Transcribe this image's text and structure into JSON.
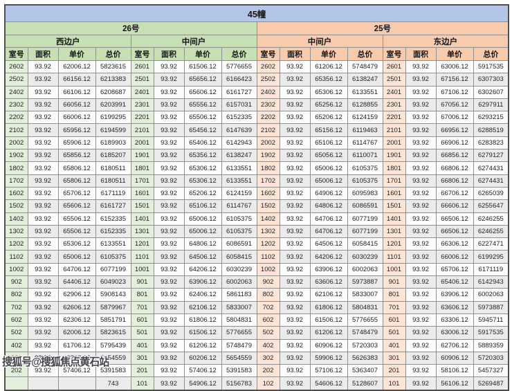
{
  "title": "45幢",
  "columns": [
    "室号",
    "面积",
    "单价",
    "总价"
  ],
  "watermark": {
    "text": "搜狐号@搜狐焦点黄石站"
  },
  "colors": {
    "title_bg": "#b4c6e7",
    "green": "#c6e0b4",
    "orange": "#f8cbad",
    "room_green": "#e2efda",
    "room_orange": "#fce4d6",
    "stripe": "#ebebeb"
  },
  "sections": [
    {
      "name": "26号",
      "units": [
        {
          "name": "西边户",
          "rows": [
            [
              "2602",
              "93.92",
              "62006.12",
              "5823615"
            ],
            [
              "2502",
              "93.92",
              "66156.12",
              "6213383"
            ],
            [
              "2402",
              "93.92",
              "66106.12",
              "6208687"
            ],
            [
              "2302",
              "93.92",
              "66056.12",
              "6203991"
            ],
            [
              "2202",
              "93.92",
              "66006.12",
              "6199295"
            ],
            [
              "2102",
              "93.92",
              "65956.12",
              "6194599"
            ],
            [
              "2002",
              "93.92",
              "65906.12",
              "6189903"
            ],
            [
              "1902",
              "93.92",
              "65856.12",
              "6185207"
            ],
            [
              "1802",
              "93.92",
              "65806.12",
              "6180511"
            ],
            [
              "1702",
              "93.92",
              "65806.12",
              "6180511"
            ],
            [
              "1602",
              "93.92",
              "65706.12",
              "6171119"
            ],
            [
              "1502",
              "93.92",
              "65606.12",
              "6161727"
            ],
            [
              "1402",
              "93.92",
              "65506.12",
              "6152335"
            ],
            [
              "1302",
              "93.92",
              "65506.12",
              "6152335"
            ],
            [
              "1202",
              "93.92",
              "65306.12",
              "6133551"
            ],
            [
              "1102",
              "93.92",
              "65006.12",
              "6105375"
            ],
            [
              "1002",
              "93.92",
              "64706.12",
              "6077199"
            ],
            [
              "902",
              "93.92",
              "64406.12",
              "6049023"
            ],
            [
              "802",
              "93.92",
              "62906.12",
              "5908143"
            ],
            [
              "702",
              "93.92",
              "62606.12",
              "5879967"
            ],
            [
              "602",
              "93.92",
              "62306.12",
              "5851791"
            ],
            [
              "502",
              "93.92",
              "62006.12",
              "5823615"
            ],
            [
              "402",
              "93.92",
              "61706.12",
              "5795439"
            ],
            [
              "302",
              "93.92",
              "60206.12",
              "5654559"
            ],
            [
              "202",
              "93.92",
              "57406.12",
              "5391583"
            ],
            [
              "",
              "",
              "",
              "743"
            ]
          ]
        },
        {
          "name": "中间户",
          "rows": [
            [
              "2601",
              "93.92",
              "61506.12",
              "5776655"
            ],
            [
              "2501",
              "93.92",
              "65656.12",
              "6166423"
            ],
            [
              "2401",
              "93.92",
              "65606.12",
              "6161727"
            ],
            [
              "2301",
              "93.92",
              "65556.12",
              "6157031"
            ],
            [
              "2201",
              "93.92",
              "65506.12",
              "6152335"
            ],
            [
              "2101",
              "93.92",
              "65456.12",
              "6147639"
            ],
            [
              "2001",
              "93.92",
              "65406.12",
              "6142943"
            ],
            [
              "1901",
              "93.92",
              "65356.12",
              "6138247"
            ],
            [
              "1801",
              "93.92",
              "65306.12",
              "6133551"
            ],
            [
              "1701",
              "93.92",
              "65306.12",
              "6133551"
            ],
            [
              "1601",
              "93.92",
              "65206.12",
              "6124159"
            ],
            [
              "1501",
              "93.92",
              "65106.12",
              "6114767"
            ],
            [
              "1401",
              "93.92",
              "65006.12",
              "6105375"
            ],
            [
              "1301",
              "93.92",
              "65006.12",
              "6105375"
            ],
            [
              "1201",
              "93.92",
              "64806.12",
              "6086591"
            ],
            [
              "1101",
              "93.92",
              "64506.12",
              "6058415"
            ],
            [
              "1001",
              "93.92",
              "64206.12",
              "6030239"
            ],
            [
              "901",
              "93.92",
              "63906.12",
              "6002063"
            ],
            [
              "801",
              "93.92",
              "62406.12",
              "5861183"
            ],
            [
              "701",
              "93.92",
              "62106.12",
              "5833007"
            ],
            [
              "601",
              "93.92",
              "61806.12",
              "5804831"
            ],
            [
              "501",
              "93.92",
              "61506.12",
              "5776655"
            ],
            [
              "401",
              "93.92",
              "61206.12",
              "5748479"
            ],
            [
              "301",
              "93.92",
              "60206.12",
              "5654559"
            ],
            [
              "201",
              "93.92",
              "57406.12",
              "5391583"
            ],
            [
              "101",
              "93.92",
              "54906.12",
              "5156783"
            ]
          ]
        }
      ]
    },
    {
      "name": "25号",
      "units": [
        {
          "name": "中间户",
          "rows": [
            [
              "2602",
              "93.92",
              "61206.12",
              "5748479"
            ],
            [
              "2502",
              "93.92",
              "65356.12",
              "6138247"
            ],
            [
              "2402",
              "93.92",
              "65306.12",
              "6133551"
            ],
            [
              "2302",
              "93.92",
              "65256.12",
              "6128855"
            ],
            [
              "2202",
              "93.92",
              "65206.12",
              "6124159"
            ],
            [
              "2102",
              "93.92",
              "65156.12",
              "6119463"
            ],
            [
              "2002",
              "93.92",
              "65106.12",
              "6114767"
            ],
            [
              "1902",
              "93.92",
              "65056.12",
              "6110071"
            ],
            [
              "1802",
              "93.92",
              "65006.12",
              "6105375"
            ],
            [
              "1702",
              "93.92",
              "65006.12",
              "6105375"
            ],
            [
              "1602",
              "93.92",
              "64906.12",
              "6095983"
            ],
            [
              "1502",
              "93.92",
              "64806.12",
              "6086591"
            ],
            [
              "1402",
              "93.92",
              "64706.12",
              "6077199"
            ],
            [
              "1302",
              "93.92",
              "64706.12",
              "6077199"
            ],
            [
              "1202",
              "93.92",
              "64506.12",
              "6058415"
            ],
            [
              "1102",
              "93.92",
              "64206.12",
              "6030239"
            ],
            [
              "1002",
              "93.92",
              "63906.12",
              "6002063"
            ],
            [
              "902",
              "93.92",
              "63606.12",
              "5973887"
            ],
            [
              "802",
              "93.92",
              "62106.12",
              "5833007"
            ],
            [
              "702",
              "93.92",
              "61806.12",
              "5804831"
            ],
            [
              "602",
              "93.92",
              "61506.12",
              "5776655"
            ],
            [
              "502",
              "93.92",
              "61206.12",
              "5748479"
            ],
            [
              "402",
              "93.92",
              "60906.12",
              "5720303"
            ],
            [
              "302",
              "93.92",
              "59906.12",
              "5626383"
            ],
            [
              "202",
              "93.92",
              "57106.12",
              "5363407"
            ],
            [
              "102",
              "93.92",
              "54606.12",
              "5128607"
            ]
          ]
        },
        {
          "name": "东边户",
          "rows": [
            [
              "2601",
              "93.92",
              "63006.12",
              "5917535"
            ],
            [
              "2501",
              "93.92",
              "67156.12",
              "6307303"
            ],
            [
              "2401",
              "93.92",
              "67106.12",
              "6302607"
            ],
            [
              "2301",
              "93.92",
              "67056.12",
              "6297911"
            ],
            [
              "2201",
              "93.92",
              "67006.12",
              "6293215"
            ],
            [
              "2101",
              "93.92",
              "66956.12",
              "6288519"
            ],
            [
              "2001",
              "93.92",
              "66906.12",
              "6283823"
            ],
            [
              "1901",
              "93.92",
              "66856.12",
              "6279127"
            ],
            [
              "1801",
              "93.92",
              "66806.12",
              "6274431"
            ],
            [
              "1701",
              "93.92",
              "66806.12",
              "6274431"
            ],
            [
              "1601",
              "93.92",
              "66706.12",
              "6265039"
            ],
            [
              "1501",
              "93.92",
              "66606.12",
              "6255647"
            ],
            [
              "1401",
              "93.92",
              "66506.12",
              "6246255"
            ],
            [
              "1301",
              "93.92",
              "66506.12",
              "6246255"
            ],
            [
              "1201",
              "93.92",
              "66306.12",
              "6227471"
            ],
            [
              "1101",
              "93.92",
              "66006.12",
              "6199295"
            ],
            [
              "1001",
              "93.92",
              "65706.12",
              "6171119"
            ],
            [
              "901",
              "93.92",
              "65406.12",
              "6142943"
            ],
            [
              "801",
              "93.92",
              "63906.12",
              "6002063"
            ],
            [
              "701",
              "93.92",
              "63606.12",
              "5973887"
            ],
            [
              "601",
              "93.92",
              "63306.12",
              "5945711"
            ],
            [
              "501",
              "93.92",
              "63006.12",
              "5917535"
            ],
            [
              "401",
              "93.92",
              "62706.12",
              "5889359"
            ],
            [
              "301",
              "93.92",
              "60906.12",
              "5720303"
            ],
            [
              "201",
              "93.92",
              "58106.12",
              "5457327"
            ],
            [
              "101",
              "93.92",
              "56106.12",
              "5269487"
            ]
          ]
        }
      ]
    }
  ]
}
